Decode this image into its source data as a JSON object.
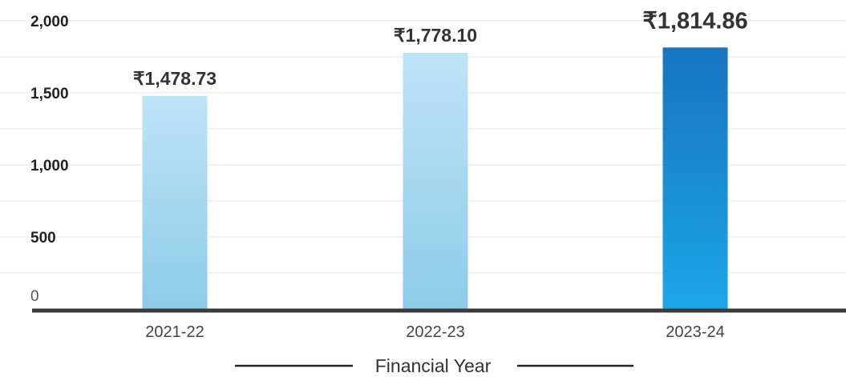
{
  "chart_data": {
    "type": "bar",
    "title": "",
    "xlabel": "Financial Year",
    "ylabel": "",
    "categories": [
      "2021-22",
      "2022-23",
      "2023-24"
    ],
    "values": [
      1478.73,
      1778.1,
      1814.86
    ],
    "data_labels": [
      "₹1,478.73",
      "₹1,778.10",
      "₹1,814.86"
    ],
    "value_prefix": "₹",
    "ylim": [
      0,
      2100
    ],
    "yticks": [
      0,
      500,
      1000,
      1500,
      2000
    ],
    "ytick_labels": [
      "0",
      "500",
      "1,000",
      "1,500",
      "2,000"
    ],
    "grid": true,
    "highlight_index": 2,
    "colors": {
      "bar_top": "#bfe4f8",
      "bar_bottom": "#8ecbe8",
      "highlight_top": "#1874bf",
      "highlight_bottom": "#1ca6e6",
      "highlight_label": "#1ba1de",
      "gridline": "#e6e6e6",
      "axis": "#3a3a3a"
    }
  }
}
